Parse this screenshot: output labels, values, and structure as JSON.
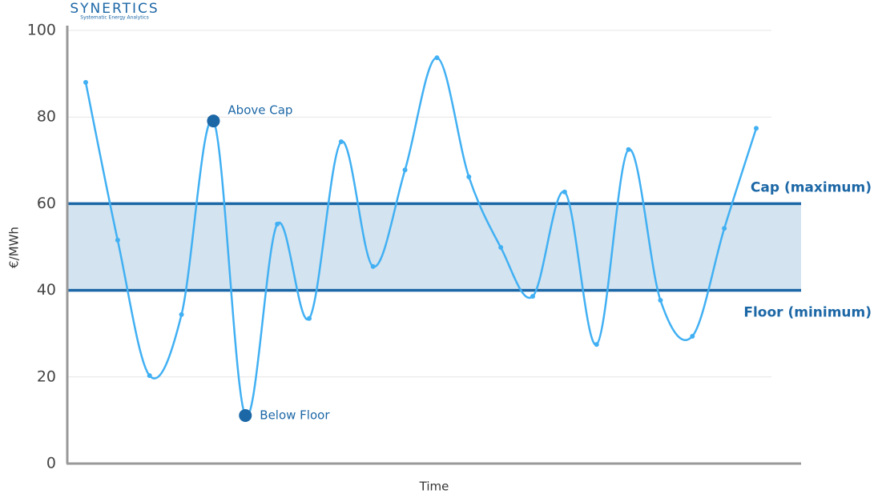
{
  "brand": {
    "name": "SYNERTICS",
    "tagline": "Systematic Energy Analytics"
  },
  "chart_data": {
    "type": "line",
    "y_label": "€/MWh",
    "x_label": "Time",
    "categories": [
      null,
      null,
      null,
      null,
      null,
      null,
      null,
      null,
      null,
      null,
      null,
      null,
      null,
      null,
      null,
      null,
      null,
      null,
      null,
      null,
      null,
      null
    ],
    "values": [
      88,
      51.6,
      20.3,
      34.4,
      79.1,
      11.1,
      55.3,
      33.5,
      74.3,
      45.5,
      67.8,
      93.7,
      66.2,
      49.9,
      38.6,
      62.7,
      27.5,
      72.5,
      37.7,
      29.4,
      54.3,
      77.4
    ],
    "color": "#41b0f3",
    "ylim": [
      0,
      100
    ],
    "yticks": [
      0,
      20,
      40,
      60,
      80,
      100
    ],
    "grid": true,
    "reference_lines": [
      {
        "label": "Cap (maximum)",
        "value": 60
      },
      {
        "label": "Floor (minimum)",
        "value": 40
      }
    ],
    "band_color": "#d3e3ef",
    "reference_color": "#1c67a6",
    "annotations": [
      {
        "text": "Above Cap",
        "index": 4
      },
      {
        "text": "Below Floor",
        "index": 5
      }
    ]
  }
}
